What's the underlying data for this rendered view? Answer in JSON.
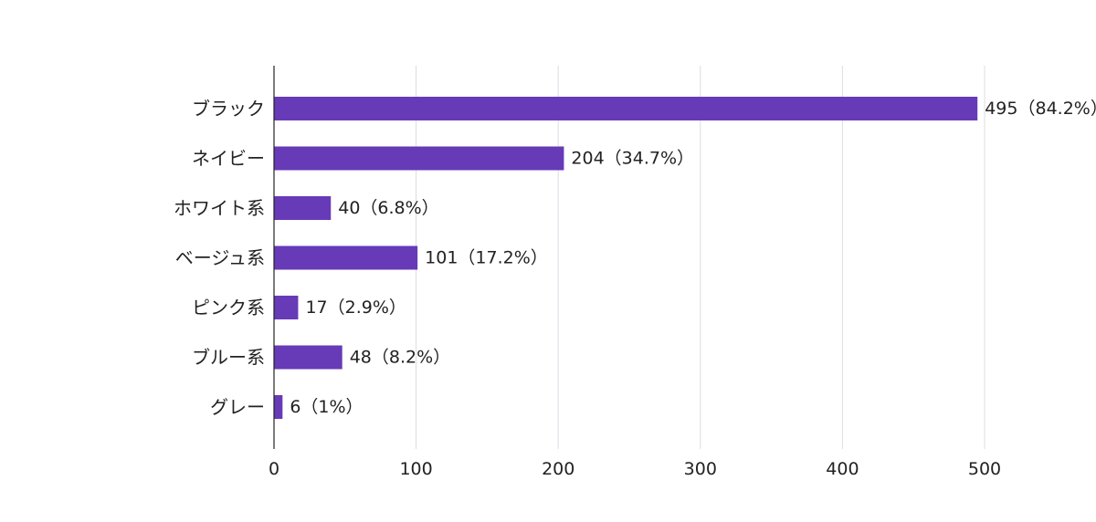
{
  "chart_data": {
    "type": "bar",
    "orientation": "horizontal",
    "categories": [
      "ブラック",
      "ネイビー",
      "ホワイト系",
      "ベージュ系",
      "ピンク系",
      "ブルー系",
      "グレー"
    ],
    "values": [
      495,
      204,
      40,
      101,
      17,
      48,
      6
    ],
    "data_labels": [
      "495（84.2%）",
      "204（34.7%）",
      "40（6.8%）",
      "101（17.2%）",
      "17（2.9%）",
      "48（8.2%）",
      "6（1%）"
    ],
    "xlim": [
      0,
      500
    ],
    "x_ticks": [
      0,
      100,
      200,
      300,
      400,
      500
    ],
    "x_tick_labels": [
      "0",
      "100",
      "200",
      "300",
      "400",
      "500"
    ],
    "grid": true,
    "legend": "none",
    "bar_color": "#673ab7"
  }
}
